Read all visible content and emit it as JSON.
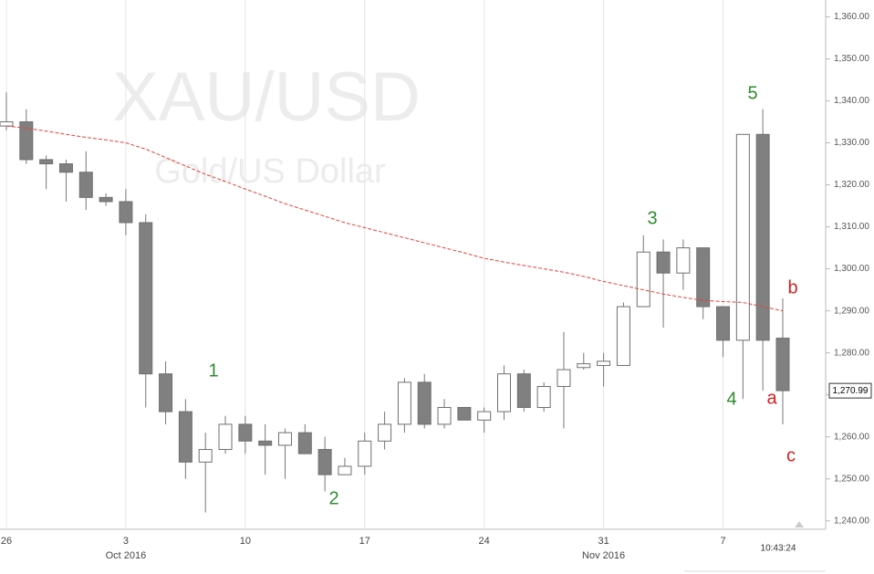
{
  "chart_data": {
    "type": "candlestick",
    "title": "XAU/USD",
    "subtitle": "Gold/US Dollar",
    "categories": [
      "26",
      null,
      null,
      null,
      null,
      null,
      "3",
      null,
      null,
      null,
      null,
      null,
      "10",
      null,
      null,
      null,
      null,
      null,
      "17",
      null,
      null,
      null,
      null,
      null,
      "24",
      null,
      null,
      null,
      null,
      null,
      "31",
      null,
      null,
      null,
      null,
      null,
      "7",
      null,
      null,
      null
    ],
    "subcategories": [
      null,
      null,
      null,
      null,
      null,
      null,
      "Oct 2016",
      null,
      null,
      null,
      null,
      null,
      null,
      null,
      null,
      null,
      null,
      null,
      null,
      null,
      null,
      null,
      null,
      null,
      null,
      null,
      null,
      null,
      null,
      null,
      "Nov 2016",
      null,
      null,
      null,
      null,
      null,
      null,
      null,
      null,
      null
    ],
    "open": [
      1334,
      1335,
      1326,
      1325,
      1323,
      1317,
      1316,
      1311,
      1275,
      1266,
      1254,
      1257,
      1263,
      1259,
      1258,
      1261,
      1257,
      1251,
      1253,
      1259,
      1263,
      1273,
      1263,
      1267,
      1264,
      1266,
      1275,
      1267,
      1272,
      1276.5,
      1277,
      1277,
      1291,
      1304,
      1299,
      1305,
      1291,
      1283,
      1332,
      1283.5
    ],
    "high": [
      1342,
      1338,
      1327,
      1326,
      1328,
      1318,
      1319,
      1313,
      1278,
      1269,
      1261,
      1265,
      1265,
      1263,
      1262,
      1263,
      1260,
      1255,
      1261,
      1266,
      1274,
      1275,
      1269,
      1267,
      1267,
      1277,
      1276,
      1273,
      1285,
      1280,
      1280,
      1292,
      1308,
      1307,
      1307,
      1305,
      1291,
      1332,
      1338,
      1293
    ],
    "low": [
      1333,
      1325,
      1319,
      1316,
      1314,
      1315,
      1308,
      1267,
      1263,
      1250,
      1242,
      1256,
      1256,
      1251,
      1250,
      1256,
      1247,
      1251,
      1251,
      1257,
      1261,
      1262,
      1262,
      1264,
      1261,
      1264,
      1266,
      1266,
      1262,
      1276,
      1272,
      1277,
      1291,
      1286,
      1295,
      1288,
      1279,
      1269,
      1271,
      1263
    ],
    "close": [
      1335,
      1326,
      1325,
      1323,
      1317,
      1316,
      1311,
      1275,
      1266,
      1254,
      1257,
      1263,
      1259,
      1258,
      1261,
      1256,
      1251,
      1253,
      1259,
      1263,
      1273,
      1263,
      1267,
      1264,
      1266,
      1275,
      1267,
      1272,
      1276,
      1277.4,
      1278,
      1291,
      1304,
      1299,
      1305,
      1291,
      1283,
      1332,
      1283,
      1271
    ],
    "moving_average": [
      1334,
      1333.5,
      1332.8,
      1332,
      1331.3,
      1330.7,
      1330,
      1328.5,
      1326.5,
      1324.5,
      1322.5,
      1320.8,
      1319,
      1317.3,
      1315.5,
      1314,
      1312.5,
      1311,
      1309.8,
      1308.6,
      1307.4,
      1306.2,
      1305,
      1303.8,
      1302.5,
      1301.6,
      1300.8,
      1300,
      1299.2,
      1298.2,
      1297,
      1296,
      1295,
      1294,
      1293.2,
      1292.5,
      1292.2,
      1292,
      1291,
      1290
    ],
    "ma_color": "#e0453a",
    "up_color": "#ffffff",
    "down_color": "#808080",
    "ylim": [
      1238,
      1364
    ],
    "yticks": [
      {
        "value": 1240,
        "label": "1,240.00"
      },
      {
        "value": 1250,
        "label": "1,250.00"
      },
      {
        "value": 1260,
        "label": "1,260.00"
      },
      {
        "value": 1270,
        "label": "1,270.00"
      },
      {
        "value": 1280,
        "label": "1,280.00"
      },
      {
        "value": 1290,
        "label": "1,290.00"
      },
      {
        "value": 1300,
        "label": "1,300.00"
      },
      {
        "value": 1310,
        "label": "1,310.00"
      },
      {
        "value": 1320,
        "label": "1,320.00"
      },
      {
        "value": 1330,
        "label": "1,330.00"
      },
      {
        "value": 1340,
        "label": "1,340.00"
      },
      {
        "value": 1350,
        "label": "1,350.00"
      },
      {
        "value": 1360,
        "label": "1,360.00"
      }
    ],
    "last_price": {
      "value": 1270.99,
      "label": "1,270.99"
    },
    "time_label": "10:43:24",
    "annotations": [
      {
        "text": "1",
        "color": "#2e8b2e"
      },
      {
        "text": "2",
        "color": "#2e8b2e"
      },
      {
        "text": "3",
        "color": "#2e8b2e"
      },
      {
        "text": "4",
        "color": "#2e8b2e"
      },
      {
        "text": "5",
        "color": "#2e8b2e"
      },
      {
        "text": "a",
        "color": "#d42020"
      },
      {
        "text": "b",
        "color": "#d42020"
      },
      {
        "text": "c",
        "color": "#d42020"
      }
    ],
    "grid": true
  }
}
